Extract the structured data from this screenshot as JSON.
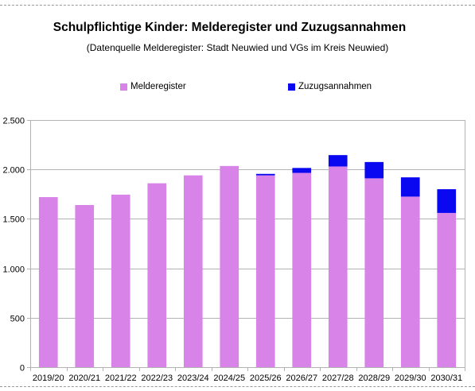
{
  "chart_data": {
    "type": "bar",
    "stacked": true,
    "title": "Schulpflichtige Kinder: Melderegister und Zuzugsannahmen",
    "subtitle": "(Datenquelle Melderegister: Stadt Neuwied und VGs im Kreis Neuwied)",
    "xlabel": "",
    "ylabel": "",
    "categories": [
      "2019/20",
      "2020/21",
      "2021/22",
      "2022/23",
      "2023/24",
      "2024/25",
      "2025/26",
      "2026/27",
      "2027/28",
      "2028/29",
      "2029/30",
      "2030/31"
    ],
    "series": [
      {
        "name": "Melderegister",
        "color": "#d783e8",
        "values": [
          1720,
          1640,
          1745,
          1860,
          1940,
          2035,
          1940,
          1965,
          2030,
          1910,
          1725,
          1560
        ]
      },
      {
        "name": "Zuzugsannahmen",
        "color": "#0a08f0",
        "values": [
          0,
          0,
          0,
          0,
          0,
          0,
          15,
          50,
          115,
          165,
          195,
          240
        ]
      }
    ],
    "ylim": [
      0,
      2500
    ],
    "yticks": [
      0,
      500,
      1000,
      1500,
      2000,
      2500
    ],
    "ytick_labels": [
      "0",
      "500",
      "1.000",
      "1.500",
      "2.000",
      "2.500"
    ],
    "grid": "horizontal",
    "legend_position": "top"
  }
}
